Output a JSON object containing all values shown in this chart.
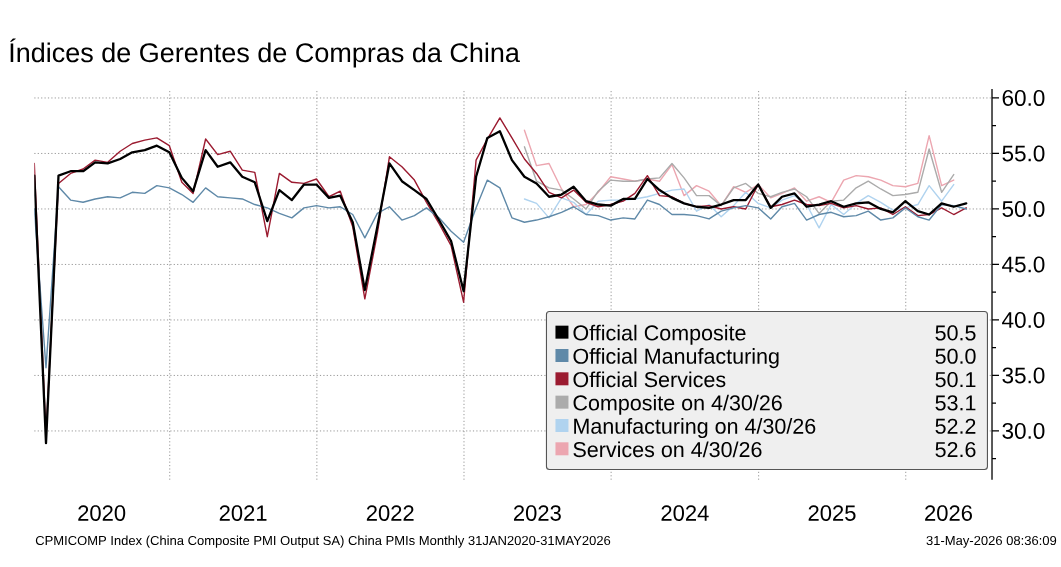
{
  "chart_data": {
    "type": "line",
    "title": "Índices de Gerentes de Compras da China",
    "x": [
      "2020-01-31",
      "2020-02-29",
      "2020-03-31",
      "2020-04-30",
      "2020-05-31",
      "2020-06-30",
      "2020-07-31",
      "2020-08-31",
      "2020-09-30",
      "2020-10-31",
      "2020-11-30",
      "2020-12-31",
      "2021-01-31",
      "2021-02-28",
      "2021-03-31",
      "2021-04-30",
      "2021-05-31",
      "2021-06-30",
      "2021-07-31",
      "2021-08-31",
      "2021-09-30",
      "2021-10-31",
      "2021-11-30",
      "2021-12-31",
      "2022-01-31",
      "2022-02-28",
      "2022-03-31",
      "2022-04-30",
      "2022-05-31",
      "2022-06-30",
      "2022-07-31",
      "2022-08-31",
      "2022-09-30",
      "2022-10-31",
      "2022-11-30",
      "2022-12-31",
      "2023-01-31",
      "2023-02-28",
      "2023-03-31",
      "2023-04-30",
      "2023-05-31",
      "2023-06-30",
      "2023-07-31",
      "2023-08-31",
      "2023-09-30",
      "2023-10-31",
      "2023-11-30",
      "2023-12-31",
      "2024-01-31",
      "2024-02-29",
      "2024-03-31",
      "2024-04-30",
      "2024-05-31",
      "2024-06-30",
      "2024-07-31",
      "2024-08-31",
      "2024-09-30",
      "2024-10-31",
      "2024-11-30",
      "2024-12-31",
      "2025-01-31",
      "2025-02-28",
      "2025-03-31",
      "2025-04-30",
      "2025-05-31",
      "2025-06-30",
      "2025-07-31",
      "2025-08-31",
      "2025-09-30",
      "2025-10-31",
      "2025-11-30",
      "2025-12-31",
      "2026-01-31",
      "2026-02-28",
      "2026-03-31",
      "2026-04-30",
      "2026-05-31"
    ],
    "series": [
      {
        "name": "Official Composite",
        "color": "#000000",
        "values": [
          53.0,
          28.9,
          53.0,
          53.4,
          53.4,
          54.2,
          54.1,
          54.5,
          55.1,
          55.3,
          55.7,
          55.1,
          52.8,
          51.6,
          55.3,
          53.8,
          54.2,
          52.9,
          52.4,
          48.9,
          51.7,
          50.8,
          52.2,
          52.2,
          51.0,
          51.2,
          48.8,
          42.7,
          48.4,
          54.1,
          52.5,
          51.7,
          50.9,
          49.0,
          47.1,
          42.6,
          52.9,
          56.4,
          57.0,
          54.4,
          52.9,
          52.3,
          51.1,
          51.3,
          52.0,
          50.7,
          50.4,
          50.3,
          50.9,
          50.9,
          52.7,
          51.7,
          51.0,
          50.5,
          50.2,
          50.1,
          50.4,
          50.8,
          50.8,
          52.2,
          50.1,
          51.1,
          51.4,
          50.2,
          50.4,
          50.7,
          50.2,
          50.5,
          50.6,
          50.0,
          49.7,
          50.7,
          49.8,
          49.5,
          50.5,
          50.2,
          50.5
        ]
      },
      {
        "name": "Official Manufacturing",
        "color": "#5f89a8",
        "values": [
          50.0,
          35.7,
          52.0,
          50.8,
          50.6,
          50.9,
          51.1,
          51.0,
          51.5,
          51.4,
          52.1,
          51.9,
          51.3,
          50.6,
          51.9,
          51.1,
          51.0,
          50.9,
          50.4,
          50.1,
          49.6,
          49.2,
          50.1,
          50.3,
          50.1,
          50.2,
          49.5,
          47.4,
          49.6,
          50.2,
          49.0,
          49.4,
          50.1,
          49.2,
          48.0,
          47.0,
          50.1,
          52.6,
          51.9,
          49.2,
          48.8,
          49.0,
          49.3,
          49.7,
          50.2,
          49.5,
          49.4,
          49.0,
          49.2,
          49.1,
          50.8,
          50.4,
          49.5,
          49.5,
          49.4,
          49.1,
          49.8,
          50.1,
          50.3,
          50.1,
          49.1,
          50.2,
          50.5,
          49.0,
          49.5,
          49.7,
          49.3,
          49.4,
          49.8,
          49.0,
          49.2,
          50.1,
          49.3,
          49.0,
          50.4,
          50.3,
          50.0
        ]
      },
      {
        "name": "Official Services",
        "color": "#9b1b30",
        "values": [
          54.1,
          29.6,
          52.3,
          53.2,
          53.6,
          54.4,
          54.2,
          55.2,
          55.9,
          56.2,
          56.4,
          55.7,
          52.4,
          51.4,
          56.3,
          54.9,
          55.2,
          53.5,
          53.3,
          47.5,
          53.2,
          52.4,
          52.3,
          52.7,
          51.1,
          51.6,
          48.4,
          41.9,
          47.8,
          54.7,
          53.8,
          52.6,
          50.6,
          48.7,
          46.7,
          41.6,
          54.4,
          56.3,
          58.2,
          56.4,
          54.5,
          53.2,
          51.5,
          51.0,
          51.7,
          50.6,
          50.2,
          50.4,
          50.7,
          51.4,
          53.0,
          51.2,
          51.1,
          50.5,
          50.2,
          50.3,
          50.0,
          50.2,
          50.0,
          52.2,
          50.2,
          50.4,
          50.8,
          50.4,
          50.3,
          50.5,
          50.1,
          50.3,
          50.0,
          50.1,
          49.5,
          50.2,
          49.4,
          49.5,
          50.1,
          49.5,
          50.1
        ]
      },
      {
        "name": "Composite on 4/30/26",
        "color": "#ababab",
        "x": [
          "2023-05-31",
          "2023-06-30",
          "2023-07-31",
          "2023-08-31",
          "2023-09-30",
          "2023-10-31",
          "2023-11-30",
          "2023-12-31",
          "2024-01-31",
          "2024-02-29",
          "2024-03-31",
          "2024-04-30",
          "2024-05-31",
          "2024-06-30",
          "2024-07-31",
          "2024-08-31",
          "2024-09-30",
          "2024-10-31",
          "2024-11-30",
          "2024-12-31",
          "2025-01-31",
          "2025-02-28",
          "2025-03-31",
          "2025-04-30",
          "2025-05-31",
          "2025-06-30",
          "2025-07-31",
          "2025-08-31",
          "2025-09-30",
          "2025-10-31",
          "2025-11-30",
          "2025-12-31",
          "2026-01-31",
          "2026-02-28",
          "2026-03-31",
          "2026-04-30"
        ],
        "values": [
          55.6,
          52.5,
          51.9,
          51.7,
          50.9,
          50.0,
          51.6,
          52.6,
          52.5,
          52.5,
          52.7,
          52.8,
          54.1,
          52.8,
          51.2,
          51.2,
          50.3,
          51.9,
          52.3,
          51.4,
          51.1,
          51.5,
          51.8,
          51.1,
          49.6,
          50.7,
          50.8,
          51.9,
          52.5,
          51.8,
          51.2,
          51.3,
          51.5,
          55.4,
          51.5,
          53.1
        ]
      },
      {
        "name": "Manufacturing on 4/30/26",
        "color": "#b0d3ef",
        "x": [
          "2023-05-31",
          "2023-06-30",
          "2023-07-31",
          "2023-08-31",
          "2023-09-30",
          "2023-10-31",
          "2023-11-30",
          "2023-12-31",
          "2024-01-31",
          "2024-02-29",
          "2024-03-31",
          "2024-04-30",
          "2024-05-31",
          "2024-06-30",
          "2024-07-31",
          "2024-08-31",
          "2024-09-30",
          "2024-10-31",
          "2024-11-30",
          "2024-12-31",
          "2025-01-31",
          "2025-02-28",
          "2025-03-31",
          "2025-04-30",
          "2025-05-31",
          "2025-06-30",
          "2025-07-31",
          "2025-08-31",
          "2025-09-30",
          "2025-10-31",
          "2025-11-30",
          "2025-12-31",
          "2026-01-31",
          "2026-02-28",
          "2026-03-31",
          "2026-04-30"
        ],
        "values": [
          50.9,
          50.5,
          49.2,
          51.0,
          50.6,
          49.5,
          50.7,
          50.8,
          50.8,
          50.9,
          51.1,
          51.4,
          51.7,
          51.8,
          49.8,
          50.4,
          49.3,
          50.3,
          51.5,
          50.5,
          50.1,
          50.8,
          51.2,
          50.4,
          48.3,
          50.4,
          49.5,
          50.5,
          51.2,
          50.6,
          49.9,
          50.1,
          50.4,
          52.1,
          50.7,
          52.2
        ]
      },
      {
        "name": "Services on 4/30/26",
        "color": "#eca6b0",
        "x": [
          "2023-05-31",
          "2023-06-30",
          "2023-07-31",
          "2023-08-31",
          "2023-09-30",
          "2023-10-31",
          "2023-11-30",
          "2023-12-31",
          "2024-01-31",
          "2024-02-29",
          "2024-03-31",
          "2024-04-30",
          "2024-05-31",
          "2024-06-30",
          "2024-07-31",
          "2024-08-31",
          "2024-09-30",
          "2024-10-31",
          "2024-11-30",
          "2024-12-31",
          "2025-01-31",
          "2025-02-28",
          "2025-03-31",
          "2025-04-30",
          "2025-05-31",
          "2025-06-30",
          "2025-07-31",
          "2025-08-31",
          "2025-09-30",
          "2025-10-31",
          "2025-11-30",
          "2025-12-31",
          "2026-01-31",
          "2026-02-28",
          "2026-03-31",
          "2026-04-30"
        ],
        "values": [
          57.1,
          53.9,
          54.1,
          51.8,
          50.2,
          50.4,
          51.5,
          52.9,
          52.7,
          52.5,
          52.7,
          52.5,
          54.0,
          51.2,
          52.1,
          51.6,
          50.3,
          52.0,
          51.5,
          52.2,
          51.0,
          51.4,
          51.9,
          50.7,
          51.1,
          50.6,
          52.6,
          53.0,
          52.9,
          52.6,
          52.1,
          52.0,
          52.3,
          56.6,
          52.1,
          52.6
        ]
      }
    ],
    "xlim": [
      "2020-01-31",
      "2026-08-03"
    ],
    "xticks": [
      {
        "value": "2020-07-16",
        "label": "2020"
      },
      {
        "value": "2021-01-01",
        "label": null
      },
      {
        "value": "2021-07-02",
        "label": "2021"
      },
      {
        "value": "2022-01-01",
        "label": null
      },
      {
        "value": "2022-07-02",
        "label": "2022"
      },
      {
        "value": "2023-01-01",
        "label": null
      },
      {
        "value": "2023-07-02",
        "label": "2023"
      },
      {
        "value": "2024-01-01",
        "label": null
      },
      {
        "value": "2024-07-02",
        "label": "2024"
      },
      {
        "value": "2025-01-01",
        "label": null
      },
      {
        "value": "2025-07-02",
        "label": "2025"
      },
      {
        "value": "2026-01-01",
        "label": null
      },
      {
        "value": "2026-04-17",
        "label": "2026"
      }
    ],
    "ylim": [
      25.6,
      60.8
    ],
    "yticks": [
      {
        "value": 27.5,
        "label": null
      },
      {
        "value": 30,
        "label": "30.0"
      },
      {
        "value": 32.5,
        "label": null
      },
      {
        "value": 35,
        "label": "35.0"
      },
      {
        "value": 37.5,
        "label": null
      },
      {
        "value": 40,
        "label": "40.0"
      },
      {
        "value": 42.5,
        "label": null
      },
      {
        "value": 45,
        "label": "45.0"
      },
      {
        "value": 47.5,
        "label": null
      },
      {
        "value": 50,
        "label": "50.0"
      },
      {
        "value": 52.5,
        "label": null
      },
      {
        "value": 55,
        "label": "55.0"
      },
      {
        "value": 57.5,
        "label": null
      },
      {
        "value": 60,
        "label": "60.0"
      }
    ],
    "grid": true,
    "legend": "bottom right",
    "annotations": [
      "CPMICOMP Index (China Composite PMI Output SA) China PMIs Monthly 31JAN2020-31MAY2026",
      "31-May-2026 08:36:09",
      "50.5",
      "50.0",
      "50.1",
      "53.1",
      "52.2",
      "52.6"
    ]
  }
}
